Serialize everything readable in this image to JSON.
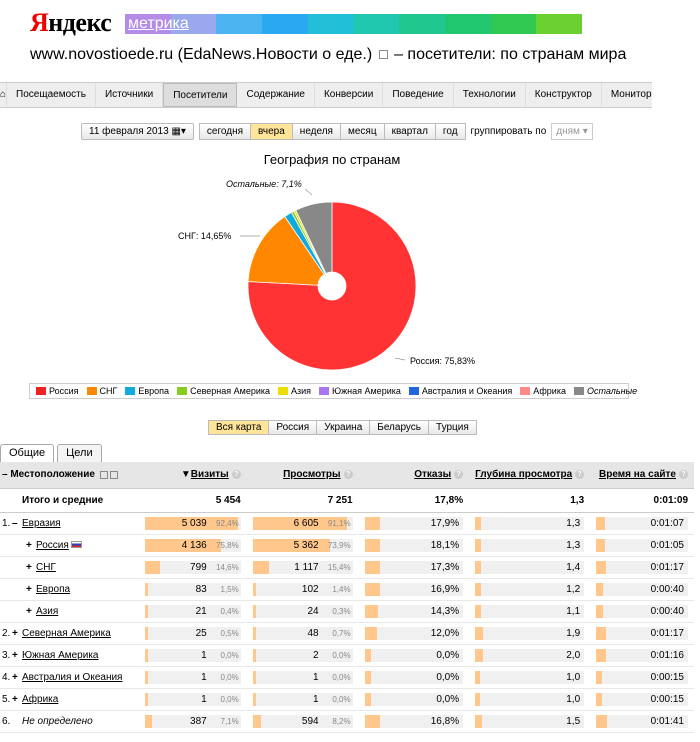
{
  "header": {
    "logo_text_1": "Я",
    "logo_text_2": "ндекс",
    "product": "метрика",
    "site": "www.novostioede.ru (EdaNews.Новости о еде.)",
    "title_suffix": "– посетители: по странам мира"
  },
  "nav": {
    "items": [
      "Посещаемость",
      "Источники",
      "Посетители",
      "Содержание",
      "Конверсии",
      "Поведение",
      "Технологии",
      "Конструктор",
      "Мониторинг"
    ],
    "active": "Посетители"
  },
  "toolbar": {
    "date": "11 февраля 2013",
    "periods": [
      "сегодня",
      "вчера",
      "неделя",
      "месяц",
      "квартал",
      "год"
    ],
    "selected_period": "вчера",
    "group_label": "группировать по",
    "group_value": "дням"
  },
  "chart_data": {
    "type": "pie",
    "title": "География по странам",
    "slices": [
      {
        "label": "Россия",
        "value": 75.83,
        "color": "#ff3333",
        "display": "Россия: 75,83%"
      },
      {
        "label": "СНГ",
        "value": 14.65,
        "color": "#ff8800",
        "display": "СНГ: 14,65%"
      },
      {
        "label": "Европа",
        "value": 1.5,
        "color": "#11aadd"
      },
      {
        "label": "Северная Америка",
        "value": 0.5,
        "color": "#88cc22"
      },
      {
        "label": "Азия",
        "value": 0.4,
        "color": "#eedd00"
      },
      {
        "label": "Остальные",
        "value": 7.1,
        "color": "#888888",
        "display": "Остальные: 7,1%"
      }
    ],
    "legend": [
      {
        "label": "Россия",
        "color": "#ee2222"
      },
      {
        "label": "СНГ",
        "color": "#ff8800"
      },
      {
        "label": "Европа",
        "color": "#11aadd"
      },
      {
        "label": "Северная Америка",
        "color": "#88cc22"
      },
      {
        "label": "Азия",
        "color": "#eedd00"
      },
      {
        "label": "Южная Америка",
        "color": "#aa77ee"
      },
      {
        "label": "Австралия и Океания",
        "color": "#2266dd"
      },
      {
        "label": "Африка",
        "color": "#ff8888"
      },
      {
        "label": "Остальные",
        "color": "#888888"
      }
    ]
  },
  "region_tabs": [
    "Вся карта",
    "Россия",
    "Украина",
    "Беларусь",
    "Турция"
  ],
  "region_selected": "Вся карта",
  "tabs": [
    "Общие",
    "Цели"
  ],
  "table": {
    "headers": {
      "location": "Местоположение",
      "visits": "Визиты",
      "views": "Просмотры",
      "bounces": "Отказы",
      "depth": "Глубина просмотра",
      "time": "Время на сайте"
    },
    "total": {
      "label": "Итого и средние",
      "visits": "5 454",
      "views": "7 251",
      "bounces": "17,8%",
      "depth": "1,3",
      "time": "0:01:09"
    },
    "rows": [
      {
        "num": "1.",
        "sign": "–",
        "name": "Евразия",
        "visits": "5 039",
        "vp": "92,4%",
        "vf": 0.924,
        "views": "6 605",
        "wp": "91,1%",
        "wf": 0.911,
        "bounces": "17,9%",
        "bf": 0.179,
        "depth": "1,3",
        "df": 0.13,
        "time": "0:01:07",
        "tf": 0.11
      },
      {
        "num": "",
        "sign": "+",
        "name": "Россия",
        "flag": true,
        "indent": 1,
        "visits": "4 136",
        "vp": "75,8%",
        "vf": 0.758,
        "views": "5 362",
        "wp": "73,9%",
        "wf": 0.739,
        "bounces": "18,1%",
        "bf": 0.181,
        "depth": "1,3",
        "df": 0.13,
        "time": "0:01:05",
        "tf": 0.11
      },
      {
        "num": "",
        "sign": "+",
        "name": "СНГ",
        "indent": 1,
        "visits": "799",
        "vp": "14,6%",
        "vf": 0.146,
        "views": "1 117",
        "wp": "15,4%",
        "wf": 0.154,
        "bounces": "17,3%",
        "bf": 0.173,
        "depth": "1,4",
        "df": 0.14,
        "time": "0:01:17",
        "tf": 0.13
      },
      {
        "num": "",
        "sign": "+",
        "name": "Европа",
        "indent": 1,
        "visits": "83",
        "vp": "1,5%",
        "vf": 0.015,
        "views": "102",
        "wp": "1,4%",
        "wf": 0.014,
        "bounces": "16,9%",
        "bf": 0.169,
        "depth": "1,2",
        "df": 0.12,
        "time": "0:00:40",
        "tf": 0.07
      },
      {
        "num": "",
        "sign": "+",
        "name": "Азия",
        "indent": 1,
        "visits": "21",
        "vp": "0,4%",
        "vf": 0.004,
        "views": "24",
        "wp": "0,3%",
        "wf": 0.003,
        "bounces": "14,3%",
        "bf": 0.143,
        "depth": "1,1",
        "df": 0.11,
        "time": "0:00:40",
        "tf": 0.07
      },
      {
        "num": "2.",
        "sign": "+",
        "name": "Северная Америка",
        "visits": "25",
        "vp": "0,5%",
        "vf": 0.005,
        "views": "48",
        "wp": "0,7%",
        "wf": 0.007,
        "bounces": "12,0%",
        "bf": 0.12,
        "depth": "1,9",
        "df": 0.19,
        "time": "0:01:17",
        "tf": 0.13
      },
      {
        "num": "3.",
        "sign": "+",
        "name": "Южная Америка",
        "visits": "1",
        "vp": "0,0%",
        "vf": 0,
        "views": "2",
        "wp": "0,0%",
        "wf": 0,
        "bounces": "0,0%",
        "bf": 0,
        "depth": "2,0",
        "df": 0.2,
        "time": "0:01:16",
        "tf": 0.13
      },
      {
        "num": "4.",
        "sign": "+",
        "name": "Австралия и Океания",
        "visits": "1",
        "vp": "0,0%",
        "vf": 0,
        "views": "1",
        "wp": "0,0%",
        "wf": 0,
        "bounces": "0,0%",
        "bf": 0,
        "depth": "1,0",
        "df": 0.1,
        "time": "0:00:15",
        "tf": 0.03
      },
      {
        "num": "5.",
        "sign": "+",
        "name": "Африка",
        "visits": "1",
        "vp": "0,0%",
        "vf": 0,
        "views": "1",
        "wp": "0,0%",
        "wf": 0,
        "bounces": "0,0%",
        "bf": 0,
        "depth": "1,0",
        "df": 0.1,
        "time": "0:00:15",
        "tf": 0.03
      },
      {
        "num": "6.",
        "sign": "",
        "name": "Не определено",
        "italic": true,
        "visits": "387",
        "vp": "7,1%",
        "vf": 0.071,
        "views": "594",
        "wp": "8,2%",
        "wf": 0.082,
        "bounces": "16,8%",
        "bf": 0.168,
        "depth": "1,5",
        "df": 0.15,
        "time": "0:01:41",
        "tf": 0.17
      }
    ]
  }
}
